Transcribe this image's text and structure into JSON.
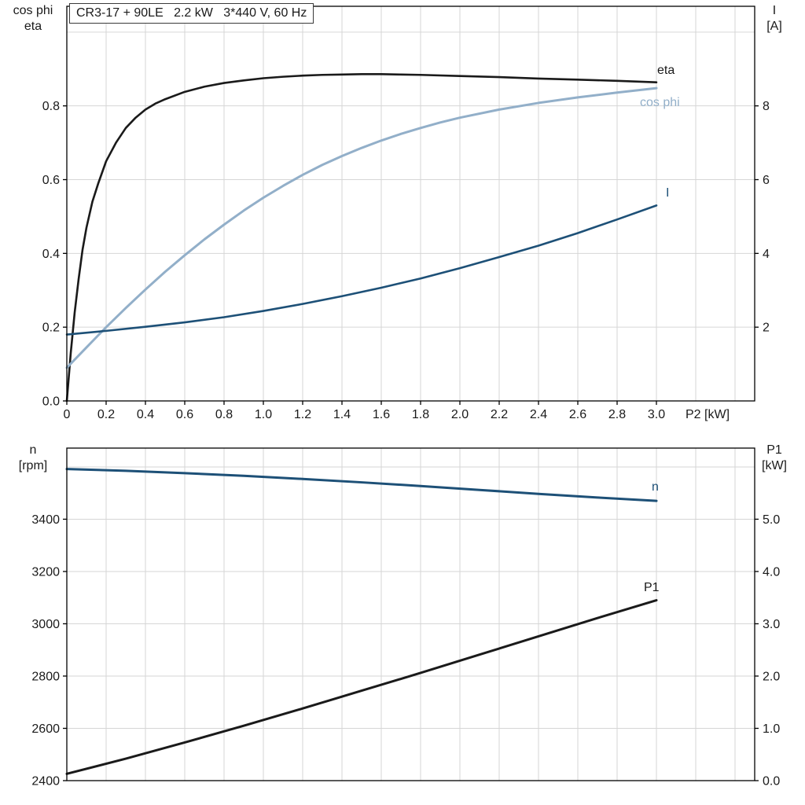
{
  "page": {
    "background": "#ffffff",
    "grid_color": "#d6d6d6",
    "frame_color": "#000000",
    "text_color": "#1a1a1a"
  },
  "title_box": {
    "text": "CR3-17 + 90LE   2.2 kW   3*440 V, 60 Hz"
  },
  "chart_data": [
    {
      "type": "line",
      "title": "CR3-17 + 90LE   2.2 kW   3*440 V, 60 Hz",
      "x": {
        "label": "P2 [kW]",
        "min": 0,
        "max": 3.5,
        "ticks": [
          0,
          0.2,
          0.4,
          0.6,
          0.8,
          1.0,
          1.2,
          1.4,
          1.6,
          1.8,
          2.0,
          2.2,
          2.4,
          2.6,
          2.8,
          3.0
        ],
        "tick_labels": [
          "0",
          "0.2",
          "0.4",
          "0.6",
          "0.8",
          "1.0",
          "1.2",
          "1.4",
          "1.6",
          "1.8",
          "2.0",
          "2.2",
          "2.4",
          "2.6",
          "2.8",
          "3.0"
        ],
        "grid": [
          0.2,
          0.4,
          0.6,
          0.8,
          1.0,
          1.2,
          1.4,
          1.6,
          1.8,
          2.0,
          2.2,
          2.4,
          2.6,
          2.8,
          3.0,
          3.2,
          3.4
        ]
      },
      "y_left": {
        "title_lines": [
          "cos phi",
          "eta"
        ],
        "min": 0,
        "max": 1.07,
        "ticks": [
          0,
          0.2,
          0.4,
          0.6,
          0.8
        ],
        "tick_labels": [
          "0.0",
          "0.2",
          "0.4",
          "0.6",
          "0.8"
        ],
        "grid": [
          0.2,
          0.4,
          0.6,
          0.8,
          1.0
        ]
      },
      "y_right": {
        "title_lines": [
          "I",
          "[A]"
        ],
        "min": 0,
        "max": 10.7,
        "ticks": [
          2,
          4,
          6,
          8
        ],
        "tick_labels": [
          "2",
          "4",
          "6",
          "8"
        ]
      },
      "series": [
        {
          "name": "eta",
          "color": "#1a1a1a",
          "axis": "left",
          "width": 2.6,
          "points": [
            [
              0,
              0
            ],
            [
              0.02,
              0.13
            ],
            [
              0.04,
              0.24
            ],
            [
              0.06,
              0.33
            ],
            [
              0.08,
              0.41
            ],
            [
              0.1,
              0.47
            ],
            [
              0.13,
              0.54
            ],
            [
              0.16,
              0.59
            ],
            [
              0.2,
              0.65
            ],
            [
              0.25,
              0.7
            ],
            [
              0.3,
              0.74
            ],
            [
              0.35,
              0.768
            ],
            [
              0.4,
              0.79
            ],
            [
              0.45,
              0.806
            ],
            [
              0.5,
              0.818
            ],
            [
              0.6,
              0.838
            ],
            [
              0.7,
              0.852
            ],
            [
              0.8,
              0.862
            ],
            [
              0.9,
              0.869
            ],
            [
              1.0,
              0.875
            ],
            [
              1.1,
              0.879
            ],
            [
              1.2,
              0.882
            ],
            [
              1.3,
              0.884
            ],
            [
              1.4,
              0.885
            ],
            [
              1.5,
              0.886
            ],
            [
              1.6,
              0.886
            ],
            [
              1.7,
              0.885
            ],
            [
              1.8,
              0.884
            ],
            [
              2.0,
              0.881
            ],
            [
              2.2,
              0.878
            ],
            [
              2.4,
              0.874
            ],
            [
              2.6,
              0.871
            ],
            [
              2.8,
              0.868
            ],
            [
              3.0,
              0.864
            ]
          ]
        },
        {
          "name": "cos phi",
          "color": "#92afc9",
          "axis": "left",
          "width": 3,
          "points": [
            [
              0,
              0.09
            ],
            [
              0.1,
              0.145
            ],
            [
              0.2,
              0.2
            ],
            [
              0.3,
              0.252
            ],
            [
              0.4,
              0.302
            ],
            [
              0.5,
              0.35
            ],
            [
              0.6,
              0.395
            ],
            [
              0.7,
              0.438
            ],
            [
              0.8,
              0.478
            ],
            [
              0.9,
              0.516
            ],
            [
              1.0,
              0.551
            ],
            [
              1.1,
              0.583
            ],
            [
              1.2,
              0.613
            ],
            [
              1.3,
              0.64
            ],
            [
              1.4,
              0.664
            ],
            [
              1.5,
              0.686
            ],
            [
              1.6,
              0.706
            ],
            [
              1.7,
              0.724
            ],
            [
              1.8,
              0.74
            ],
            [
              1.9,
              0.755
            ],
            [
              2.0,
              0.768
            ],
            [
              2.2,
              0.79
            ],
            [
              2.4,
              0.808
            ],
            [
              2.6,
              0.823
            ],
            [
              2.8,
              0.836
            ],
            [
              3.0,
              0.848
            ]
          ]
        },
        {
          "name": "I",
          "color": "#1d5077",
          "axis": "right",
          "width": 2.6,
          "points": [
            [
              0,
              1.8
            ],
            [
              0.2,
              1.9
            ],
            [
              0.4,
              2.01
            ],
            [
              0.6,
              2.13
            ],
            [
              0.8,
              2.27
            ],
            [
              1.0,
              2.44
            ],
            [
              1.2,
              2.63
            ],
            [
              1.4,
              2.84
            ],
            [
              1.6,
              3.07
            ],
            [
              1.8,
              3.32
            ],
            [
              2.0,
              3.6
            ],
            [
              2.2,
              3.9
            ],
            [
              2.4,
              4.21
            ],
            [
              2.6,
              4.55
            ],
            [
              2.8,
              4.92
            ],
            [
              3.0,
              5.3
            ]
          ]
        }
      ]
    },
    {
      "type": "line",
      "title": "",
      "x": {
        "label": "",
        "min": 0,
        "max": 3.5,
        "ticks": [],
        "tick_labels": [],
        "grid": [
          0.2,
          0.4,
          0.6,
          0.8,
          1.0,
          1.2,
          1.4,
          1.6,
          1.8,
          2.0,
          2.2,
          2.4,
          2.6,
          2.8,
          3.0,
          3.2,
          3.4
        ]
      },
      "y_left": {
        "title_lines": [
          "n",
          "[rpm]"
        ],
        "min": 2400,
        "max": 3672,
        "ticks": [
          2400,
          2600,
          2800,
          3000,
          3200,
          3400
        ],
        "tick_labels": [
          "2400",
          "2600",
          "2800",
          "3000",
          "3200",
          "3400"
        ],
        "grid": [
          2600,
          2800,
          3000,
          3200,
          3400,
          3600
        ]
      },
      "y_right": {
        "title_lines": [
          "P1",
          "[kW]"
        ],
        "min": 0,
        "max": 6.36,
        "ticks": [
          0,
          1,
          2,
          3,
          4,
          5
        ],
        "tick_labels": [
          "0.0",
          "1.0",
          "2.0",
          "3.0",
          "4.0",
          "5.0"
        ]
      },
      "series": [
        {
          "name": "n",
          "color": "#1d5077",
          "axis": "left",
          "width": 3,
          "points": [
            [
              0,
              3592
            ],
            [
              0.3,
              3585
            ],
            [
              0.6,
              3576
            ],
            [
              0.9,
              3566
            ],
            [
              1.2,
              3554
            ],
            [
              1.5,
              3541
            ],
            [
              1.8,
              3527
            ],
            [
              2.1,
              3512
            ],
            [
              2.4,
              3497
            ],
            [
              2.7,
              3483
            ],
            [
              3.0,
              3470
            ]
          ]
        },
        {
          "name": "P1",
          "color": "#1a1a1a",
          "axis": "right",
          "width": 3,
          "points": [
            [
              0,
              0.13
            ],
            [
              0.3,
              0.42
            ],
            [
              0.6,
              0.73
            ],
            [
              0.9,
              1.05
            ],
            [
              1.2,
              1.38
            ],
            [
              1.5,
              1.72
            ],
            [
              1.8,
              2.06
            ],
            [
              2.1,
              2.41
            ],
            [
              2.4,
              2.76
            ],
            [
              2.7,
              3.11
            ],
            [
              3.0,
              3.45
            ]
          ]
        }
      ]
    }
  ]
}
